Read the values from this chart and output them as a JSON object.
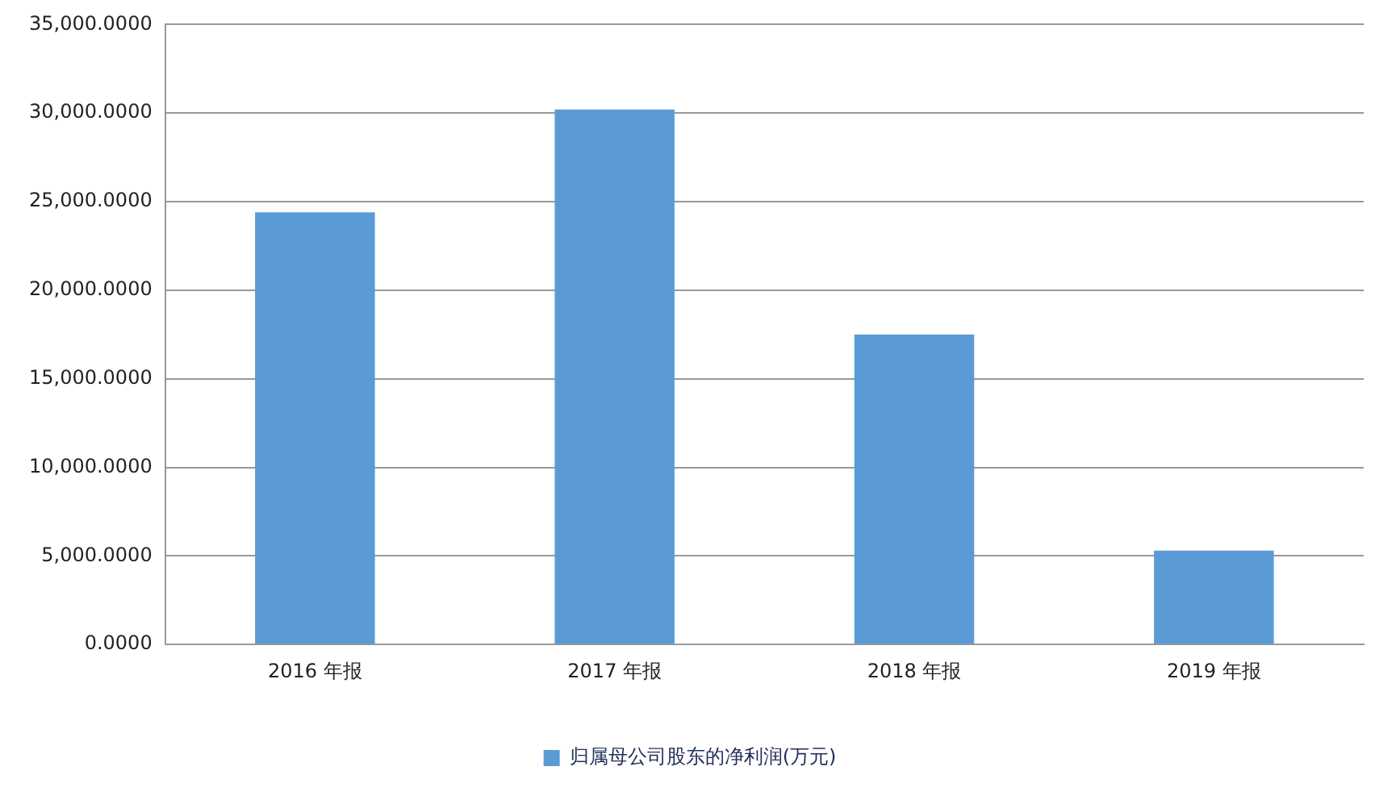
{
  "chart_data": {
    "type": "bar",
    "categories": [
      "2016 年报",
      "2017 年报",
      "2018 年报",
      "2019 年报"
    ],
    "series": [
      {
        "name": "归属母公司股东的净利润(万元)",
        "color": "#5b9bd5",
        "values": [
          24400,
          30200,
          17500,
          5300
        ]
      }
    ],
    "ylim": [
      0,
      35000
    ],
    "yticks": [
      {
        "value": 0,
        "label": "0.0000"
      },
      {
        "value": 5000,
        "label": "5,000.0000"
      },
      {
        "value": 10000,
        "label": "10,000.0000"
      },
      {
        "value": 15000,
        "label": "15,000.0000"
      },
      {
        "value": 20000,
        "label": "20,000.0000"
      },
      {
        "value": 25000,
        "label": "25,000.0000"
      },
      {
        "value": 30000,
        "label": "30,000.0000"
      },
      {
        "value": 35000,
        "label": "35,000.0000"
      }
    ],
    "grid": "y",
    "legend": "bottom"
  }
}
